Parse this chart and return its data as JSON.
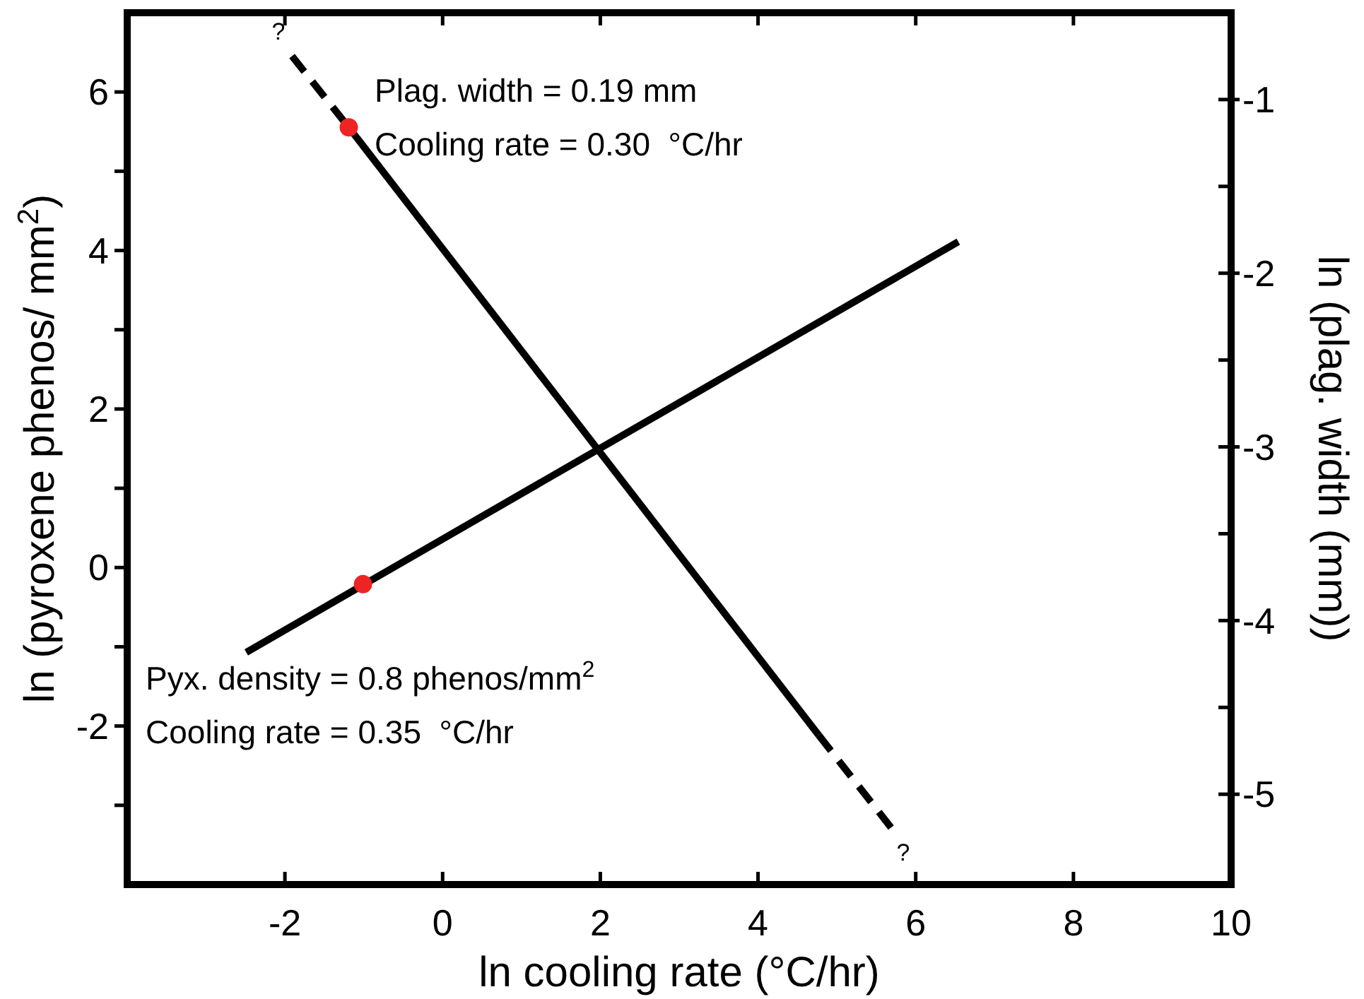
{
  "chart_data": {
    "type": "line",
    "xlabel": "ln cooling rate (°C/hr)",
    "ylabel": "ln (pyroxene phenos/ mm$^{2}$)",
    "y2label": "ln (plag. width (mm))",
    "xlim": [
      -4,
      10
    ],
    "xticks": [
      -2,
      0,
      2,
      4,
      6,
      8,
      10
    ],
    "ylim": [
      -4,
      7
    ],
    "yticks": [
      {
        "value": -3,
        "label": null
      },
      -2,
      {
        "value": -1,
        "label": null
      },
      0,
      {
        "value": 1,
        "label": null
      },
      2,
      {
        "value": 3,
        "label": null
      },
      4,
      {
        "value": 5,
        "label": null
      },
      6
    ],
    "y2lim": [
      -5.52,
      -0.5
    ],
    "y2ticks": [
      -5,
      {
        "value": -4.5,
        "label": null
      },
      -4,
      {
        "value": -3.5,
        "label": null
      },
      -3,
      {
        "value": -2.5,
        "label": null
      },
      -2,
      {
        "value": -1.5,
        "label": null
      },
      -1
    ],
    "series": [
      {
        "axis": "y2",
        "color": "#000000",
        "line_style": "solid",
        "x": [
          -1.19,
          4.77
        ],
        "values": [
          -1.16,
          -4.66
        ]
      },
      {
        "axis": "y2",
        "color": "#000000",
        "line_style": "dashed",
        "x": [
          -1.91,
          -1.19,
          1,
          4.77,
          5.77
        ],
        "values": [
          -0.75,
          -1.16,
          null,
          -4.66,
          -5.24
        ]
      },
      {
        "color": "#000000",
        "line_style": "solid",
        "x": [
          -2.49,
          6.54
        ],
        "values": [
          -1.07,
          4.11
        ]
      },
      {
        "type": "scatter",
        "color": "#ee2424",
        "marker": "circle",
        "x": [
          -1.01
        ],
        "values": [
          -0.21
        ]
      },
      {
        "type": "scatter",
        "axis": "y2",
        "color": "#ee2424",
        "marker": "circle",
        "x": [
          -1.19
        ],
        "values": [
          -1.16
        ]
      }
    ],
    "annotations": [
      "?",
      "?",
      "Plag. width = 0.19 mm",
      "Cooling rate = 0.30  °C/hr",
      "Pyx. density = 0.8 phenos/mm$^{2}$",
      "Cooling rate = 0.35  °C/hr"
    ]
  }
}
